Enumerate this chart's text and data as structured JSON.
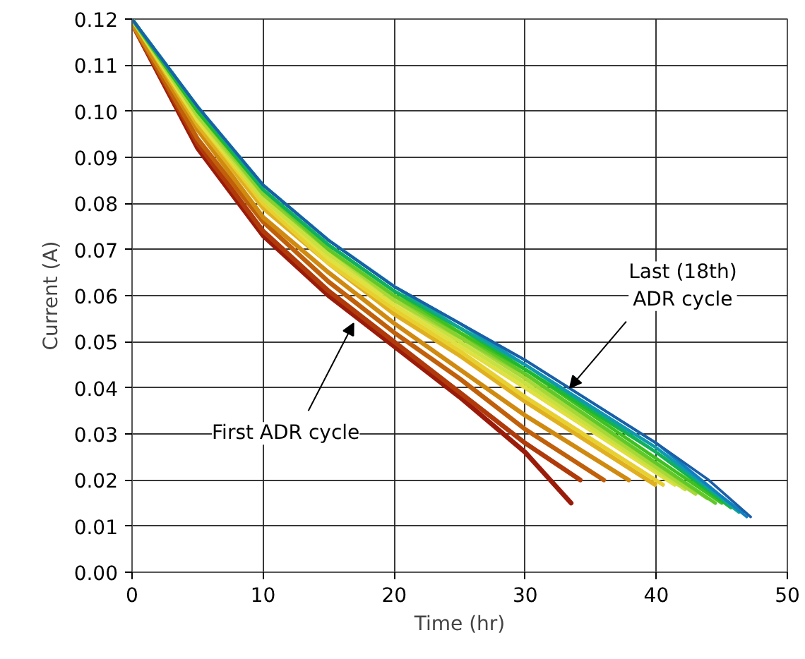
{
  "chart_data": {
    "type": "line",
    "xlabel": "Time (hr)",
    "ylabel": "Current (A)",
    "xlim": [
      0,
      50
    ],
    "xticks": [
      0,
      10,
      20,
      30,
      40,
      50
    ],
    "ylim": [
      0,
      0.12
    ],
    "yticks": [
      {
        "value": 0,
        "label": "0.00"
      },
      {
        "value": 0.01,
        "label": "0.01"
      },
      {
        "value": 0.02,
        "label": "0.02"
      },
      {
        "value": 0.03,
        "label": "0.03"
      },
      {
        "value": 0.04,
        "label": "0.04"
      },
      {
        "value": 0.05,
        "label": "0.05"
      },
      {
        "value": 0.06,
        "label": "0.06"
      },
      {
        "value": 0.07,
        "label": "0.07"
      },
      {
        "value": 0.08,
        "label": "0.08"
      },
      {
        "value": 0.09,
        "label": "0.09"
      },
      {
        "value": 0.1,
        "label": "0.10"
      },
      {
        "value": 0.11,
        "label": "0.11"
      },
      {
        "value": 0.12,
        "label": "0.12"
      }
    ],
    "grid": true,
    "marker": "none",
    "line_style": "solid",
    "series": [
      {
        "color": "#9b1b0a",
        "x": [
          0,
          5,
          10,
          15,
          20,
          25,
          30,
          33.5
        ],
        "values": [
          0.119,
          0.092,
          0.073,
          0.06,
          0.049,
          0.038,
          0.026,
          0.015
        ]
      },
      {
        "color": "#b03a0a",
        "x": [
          0,
          5,
          10,
          15,
          20,
          25,
          30,
          34.2
        ],
        "values": [
          0.119,
          0.093,
          0.074,
          0.061,
          0.05,
          0.039,
          0.028,
          0.02
        ]
      },
      {
        "color": "#c0600a",
        "x": [
          0,
          5,
          10,
          15,
          20,
          25,
          30,
          36.0
        ],
        "values": [
          0.119,
          0.094,
          0.076,
          0.063,
          0.052,
          0.042,
          0.031,
          0.02
        ]
      },
      {
        "color": "#d08a10",
        "x": [
          0,
          5,
          10,
          15,
          20,
          25,
          30,
          37.9
        ],
        "values": [
          0.119,
          0.096,
          0.077,
          0.065,
          0.054,
          0.044,
          0.034,
          0.02
        ]
      },
      {
        "color": "#e0b020",
        "x": [
          0,
          5,
          10,
          15,
          20,
          25,
          30,
          39.9
        ],
        "values": [
          0.12,
          0.097,
          0.079,
          0.067,
          0.056,
          0.047,
          0.037,
          0.019
        ]
      },
      {
        "color": "#e8d030",
        "x": [
          0,
          5,
          10,
          15,
          20,
          25,
          30,
          40.5
        ],
        "values": [
          0.12,
          0.098,
          0.08,
          0.067,
          0.057,
          0.048,
          0.038,
          0.019
        ]
      },
      {
        "color": "#e0e040",
        "x": [
          0,
          5,
          10,
          15,
          20,
          25,
          30,
          41.4
        ],
        "values": [
          0.12,
          0.098,
          0.081,
          0.068,
          0.058,
          0.049,
          0.04,
          0.019
        ]
      },
      {
        "color": "#c8e040",
        "x": [
          0,
          5,
          10,
          15,
          20,
          25,
          30,
          42.2
        ],
        "values": [
          0.12,
          0.099,
          0.081,
          0.069,
          0.059,
          0.05,
          0.041,
          0.018
        ]
      },
      {
        "color": "#a8d838",
        "x": [
          0,
          5,
          10,
          15,
          20,
          25,
          30,
          43.0
        ],
        "values": [
          0.12,
          0.099,
          0.082,
          0.07,
          0.059,
          0.051,
          0.042,
          0.017
        ]
      },
      {
        "color": "#88d030",
        "x": [
          0,
          5,
          10,
          15,
          20,
          25,
          30,
          43.9
        ],
        "values": [
          0.12,
          0.1,
          0.082,
          0.07,
          0.06,
          0.051,
          0.043,
          0.016
        ]
      },
      {
        "color": "#60c828",
        "x": [
          0,
          5,
          10,
          15,
          20,
          25,
          30,
          44.5
        ],
        "values": [
          0.12,
          0.1,
          0.083,
          0.07,
          0.06,
          0.052,
          0.043,
          0.015
        ]
      },
      {
        "color": "#40c020",
        "x": [
          0,
          5,
          10,
          15,
          20,
          25,
          30,
          45.0
        ],
        "values": [
          0.12,
          0.1,
          0.083,
          0.071,
          0.061,
          0.052,
          0.044,
          0.015
        ]
      },
      {
        "color": "#20b830",
        "x": [
          0,
          5,
          10,
          15,
          20,
          25,
          30,
          40,
          45.7
        ],
        "values": [
          0.12,
          0.1,
          0.083,
          0.071,
          0.061,
          0.053,
          0.044,
          0.026,
          0.014
        ]
      },
      {
        "color": "#10b060",
        "x": [
          0,
          5,
          10,
          15,
          20,
          25,
          30,
          40,
          46.0
        ],
        "values": [
          0.12,
          0.101,
          0.083,
          0.071,
          0.061,
          0.053,
          0.045,
          0.026,
          0.014
        ]
      },
      {
        "color": "#10a890",
        "x": [
          0,
          5,
          10,
          15,
          20,
          25,
          30,
          40,
          46.3
        ],
        "values": [
          0.12,
          0.101,
          0.084,
          0.072,
          0.062,
          0.053,
          0.045,
          0.027,
          0.013
        ]
      },
      {
        "color": "#1098b0",
        "x": [
          0,
          5,
          10,
          15,
          20,
          25,
          30,
          40,
          46.6
        ],
        "values": [
          0.12,
          0.101,
          0.084,
          0.072,
          0.062,
          0.054,
          0.045,
          0.027,
          0.013
        ]
      },
      {
        "color": "#1080c0",
        "x": [
          0,
          5,
          10,
          15,
          20,
          25,
          30,
          40,
          46.9
        ],
        "values": [
          0.12,
          0.101,
          0.084,
          0.072,
          0.062,
          0.054,
          0.046,
          0.028,
          0.012
        ]
      },
      {
        "color": "#1a5fa8",
        "x": [
          0,
          5,
          10,
          15,
          20,
          25,
          30,
          35,
          40,
          44,
          47.2
        ],
        "values": [
          0.12,
          0.101,
          0.084,
          0.072,
          0.062,
          0.054,
          0.046,
          0.037,
          0.028,
          0.02,
          0.012
        ]
      }
    ],
    "annotations": [
      {
        "text": "Last (18th)\nADR cycle",
        "x": 33.4,
        "y": 0.04
      },
      {
        "text": "First ADR cycle",
        "x": 16.9,
        "y": 0.054
      }
    ]
  }
}
